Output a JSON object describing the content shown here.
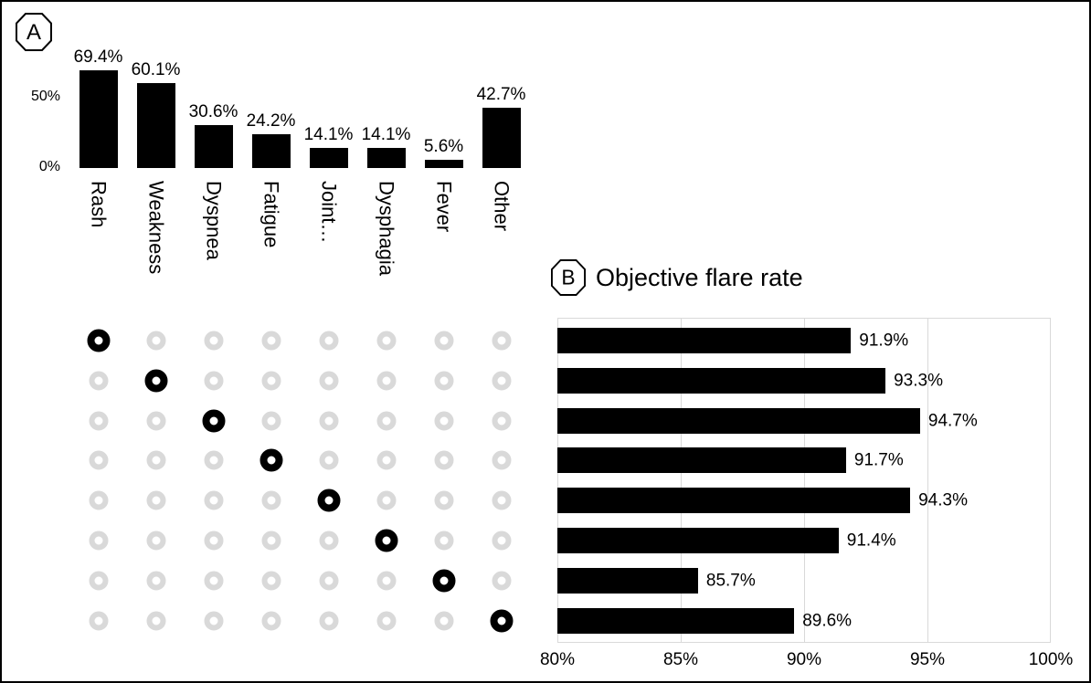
{
  "panels": {
    "a": {
      "label": "A"
    },
    "b": {
      "label": "B",
      "title": "Objective flare rate"
    }
  },
  "chart_data": [
    {
      "type": "bar",
      "panel": "A",
      "orientation": "vertical",
      "categories": [
        "Rash",
        "Weakness",
        "Dyspnea",
        "Fatigue",
        "Joint…",
        "Dysphagia",
        "Fever",
        "Other"
      ],
      "values": [
        69.4,
        60.1,
        30.6,
        24.2,
        14.1,
        14.1,
        5.6,
        42.7
      ],
      "value_labels": [
        "69.4%",
        "60.1%",
        "30.6%",
        "24.2%",
        "14.1%",
        "14.1%",
        "5.6%",
        "42.7%"
      ],
      "yticks": [
        {
          "label": "0%",
          "value": 0
        },
        {
          "label": "50%",
          "value": 50
        }
      ],
      "ylim": [
        0,
        80
      ],
      "bar_color": "#000000",
      "grid": false,
      "legend": "none"
    },
    {
      "type": "table",
      "panel": "A-matrix",
      "description": "UpSet-style membership dot matrix; one filled dot per row, on the diagonal",
      "rows": 8,
      "cols": 8,
      "columns": [
        "Rash",
        "Weakness",
        "Dyspnea",
        "Fatigue",
        "Joint…",
        "Dysphagia",
        "Fever",
        "Other"
      ],
      "active_cells": [
        [
          0,
          0
        ],
        [
          1,
          1
        ],
        [
          2,
          2
        ],
        [
          3,
          3
        ],
        [
          4,
          4
        ],
        [
          5,
          5
        ],
        [
          6,
          6
        ],
        [
          7,
          7
        ]
      ],
      "active_color": "#000000",
      "inactive_color": "#d9d9d9"
    },
    {
      "type": "bar",
      "panel": "B",
      "orientation": "horizontal",
      "title": "Objective flare rate",
      "values": [
        91.9,
        93.3,
        94.7,
        91.7,
        94.3,
        91.4,
        85.7,
        89.6
      ],
      "value_labels": [
        "91.9%",
        "93.3%",
        "94.7%",
        "91.7%",
        "94.3%",
        "91.4%",
        "85.7%",
        "89.6%"
      ],
      "xticks": [
        {
          "label": "80%",
          "value": 80
        },
        {
          "label": "85%",
          "value": 85
        },
        {
          "label": "90%",
          "value": 90
        },
        {
          "label": "95%",
          "value": 95
        },
        {
          "label": "100%",
          "value": 100
        }
      ],
      "xlim": [
        80,
        100
      ],
      "bar_color": "#000000",
      "grid": true,
      "legend": "none",
      "rows_align_with_matrix": true
    }
  ]
}
